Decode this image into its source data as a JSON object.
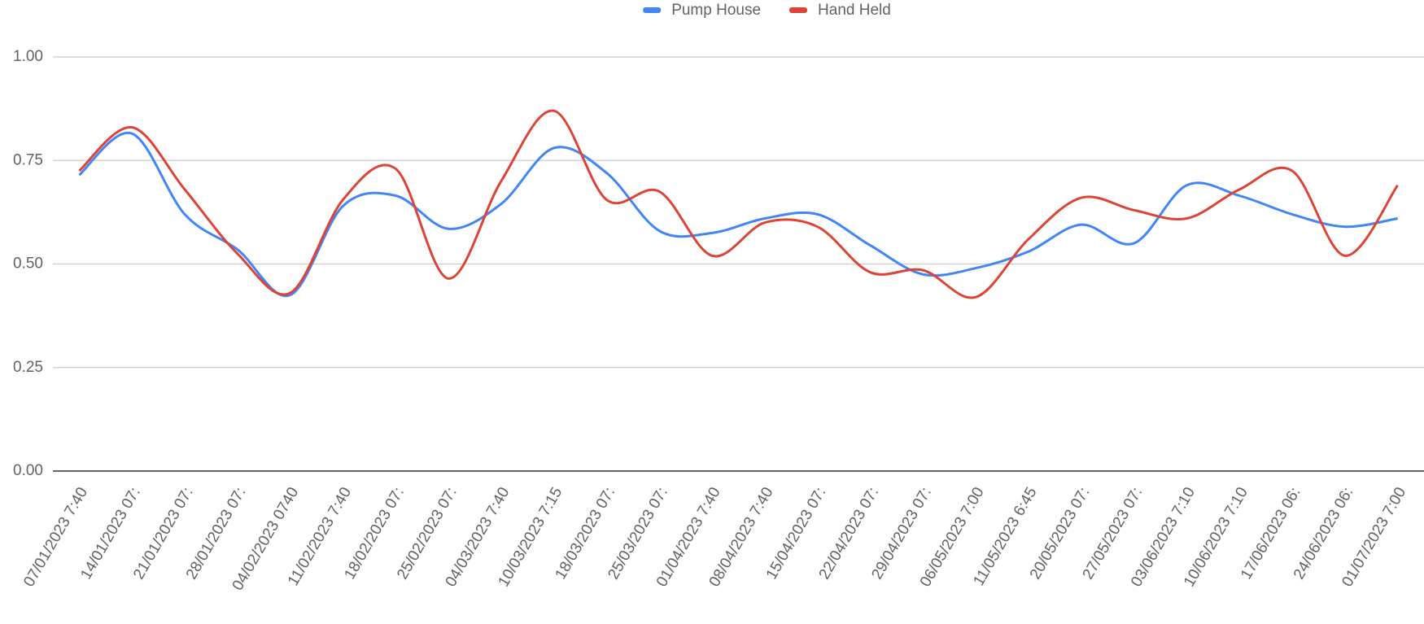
{
  "chart_data": {
    "type": "line",
    "categories": [
      "07/01/2023 7:40",
      "14/01/2023 07:",
      "21/01/2023 07:",
      "28/01/2023 07:",
      "04/02/2023 0740",
      "11/02/2023 7:40",
      "18/02/2023 07:",
      "25/02/2023 07:",
      "04/03/2023 7:40",
      "10/03/2023 7:15",
      "18/03/2023 07:",
      "25/03/2023 07:",
      "01/04/2023 7:40",
      "08/04/2023 7:40",
      "15/04/2023 07:",
      "22/04/2023 07:",
      "29/04/2023 07:",
      "06/05/2023 7:00",
      "11/05/2023 6:45",
      "20/05/2023 07:",
      "27/05/2023 07:",
      "03/06/2023 7:10",
      "10/06/2023 7:10",
      "17/06/2023 06:",
      "24/06/2023 06:",
      "01/07/2023 7:00"
    ],
    "series": [
      {
        "name": "Pump House",
        "color": "#4285f4",
        "values": [
          0.715,
          0.815,
          0.62,
          0.535,
          0.425,
          0.64,
          0.665,
          0.585,
          0.645,
          0.78,
          0.72,
          0.58,
          0.575,
          0.61,
          0.62,
          0.545,
          0.475,
          0.49,
          0.53,
          0.595,
          0.55,
          0.69,
          0.665,
          0.62,
          0.59,
          0.61
        ]
      },
      {
        "name": "Hand Held",
        "color": "#db4437",
        "values": [
          0.725,
          0.83,
          0.68,
          0.525,
          0.43,
          0.655,
          0.73,
          0.465,
          0.7,
          0.87,
          0.655,
          0.675,
          0.52,
          0.6,
          0.59,
          0.48,
          0.485,
          0.42,
          0.56,
          0.66,
          0.63,
          0.61,
          0.68,
          0.725,
          0.52,
          0.69
        ]
      }
    ],
    "ylim": [
      0,
      1
    ],
    "yticks": [
      {
        "value": 0,
        "label": "0.00"
      },
      0.25,
      {
        "value": 0.5,
        "label": "0.50"
      },
      {
        "value": 0.75,
        "label": "0.75"
      },
      {
        "value": 1,
        "label": "1.00"
      }
    ],
    "grid": true,
    "smooth": true,
    "legend": "top"
  }
}
